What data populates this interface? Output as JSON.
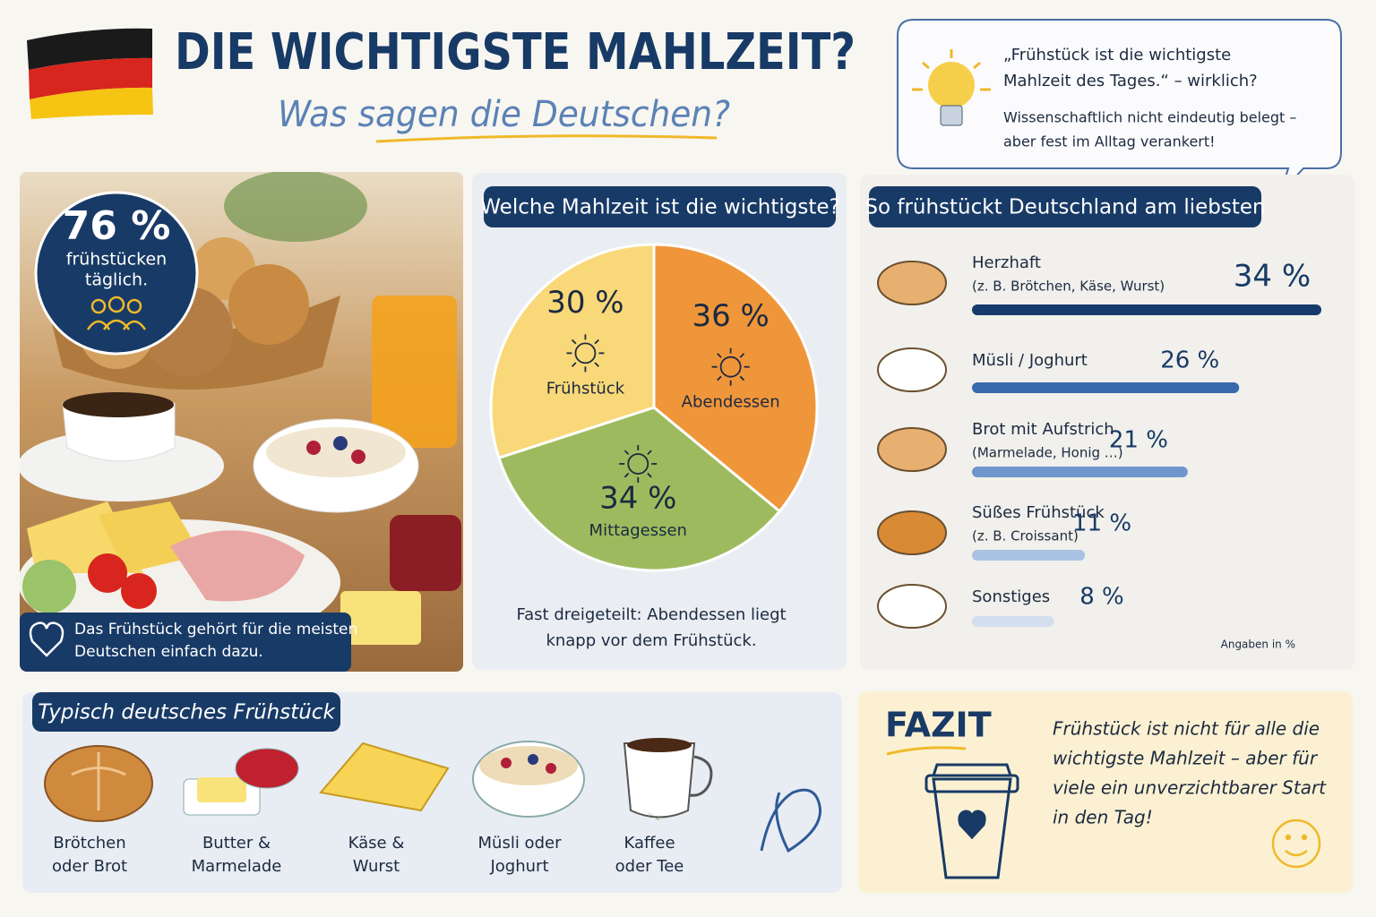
{
  "header": {
    "title": "DIE WICHTIGSTE MAHLZEIT?",
    "subtitle": "Was sagen die Deutschen?"
  },
  "quote": {
    "lines": [
      "„Frühstück ist die wichtigste",
      "Mahlzeit des Tages.“ – wirklich?"
    ],
    "answer": [
      "Wissenschaftlich nicht eindeutig belegt –",
      "aber fest im Alltag verankert!"
    ]
  },
  "photo_panel": {
    "badge": {
      "value": "76 %",
      "lines": [
        "frühstücken",
        "täglich."
      ]
    },
    "caption": [
      "Das Frühstück gehört für die meisten",
      "Deutschen einfach dazu."
    ]
  },
  "chart_data": [
    {
      "type": "pie",
      "title": "Welche Mahlzeit ist die wichtigste?",
      "categories": [
        "Abendessen",
        "Mittagessen",
        "Frühstück"
      ],
      "values": [
        36,
        34,
        30
      ],
      "value_labels": [
        "36 %",
        "34 %",
        "30 %"
      ],
      "colors": [
        "#f0963a",
        "#9dbb5e",
        "#f8d878"
      ],
      "note": [
        "Fast dreigeteilt: Abendessen liegt",
        "knapp vor dem Frühstück."
      ]
    },
    {
      "type": "bar",
      "orientation": "horizontal",
      "title": "So frühstückt Deutschland am liebsten",
      "categories": [
        "Herzhaft",
        "Müsli / Joghurt",
        "Brot mit Aufstrich",
        "Süßes Frühstück",
        "Sonstiges"
      ],
      "sublabels": [
        "(z. B. Brötchen, Käse, Wurst)",
        null,
        "(Marmelade, Honig …)",
        "(z. B. Croissant)",
        null
      ],
      "values": [
        34,
        26,
        21,
        11,
        8
      ],
      "value_labels": [
        "34 %",
        "26 %",
        "21 %",
        "11 %",
        "8 %"
      ],
      "colors": [
        "#163a6b",
        "#3a69ad",
        "#6f96cc",
        "#a9c2e3",
        "#d3dfee"
      ],
      "note": "Angaben in %"
    }
  ],
  "breakfast": {
    "title": "Typisch deutsches Frühstück",
    "items": [
      [
        "Brötchen",
        "oder Brot"
      ],
      [
        "Butter &",
        "Marmelade"
      ],
      [
        "Käse &",
        "Wurst"
      ],
      [
        "Müsli oder",
        "Joghurt"
      ],
      [
        "Kaffee",
        "oder Tee"
      ]
    ]
  },
  "fazit": {
    "title": "FAZIT",
    "lines": [
      "Frühstück ist nicht für alle die",
      "wichtigste Mahlzeit – aber für",
      "viele ein unverzichtbarer Start",
      "in den Tag!"
    ]
  }
}
